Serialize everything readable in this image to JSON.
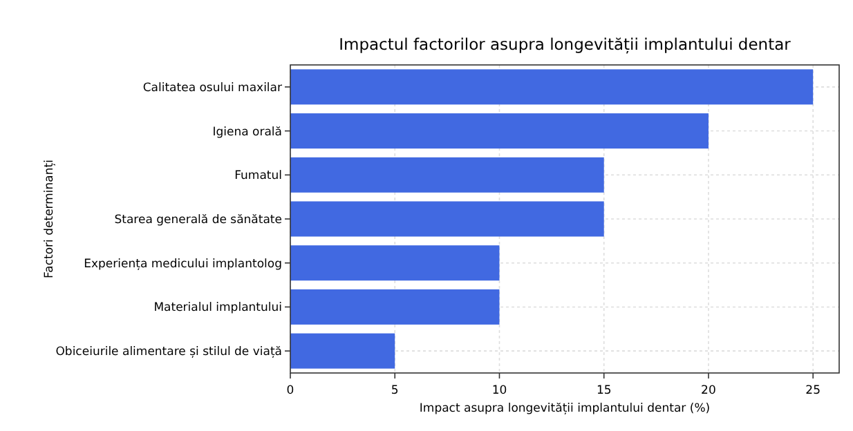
{
  "chart_data": {
    "type": "bar",
    "orientation": "horizontal",
    "title": "Impactul factorilor asupra longevității implantului dentar",
    "xlabel": "Impact asupra longevității implantului dentar (%)",
    "ylabel": "Factori determinanți",
    "categories": [
      "Calitatea osului maxilar",
      "Igiena orală",
      "Fumatul",
      "Starea generală de sănătate",
      "Experiența medicului implantolog",
      "Materialul implantului",
      "Obiceiurile alimentare și stilul de viață"
    ],
    "values": [
      25,
      20,
      15,
      15,
      10,
      10,
      5
    ],
    "color": "#4169e1",
    "xlim": [
      0,
      26.25
    ],
    "xticks": [
      0,
      5,
      10,
      15,
      20,
      25
    ],
    "grid": true
  }
}
